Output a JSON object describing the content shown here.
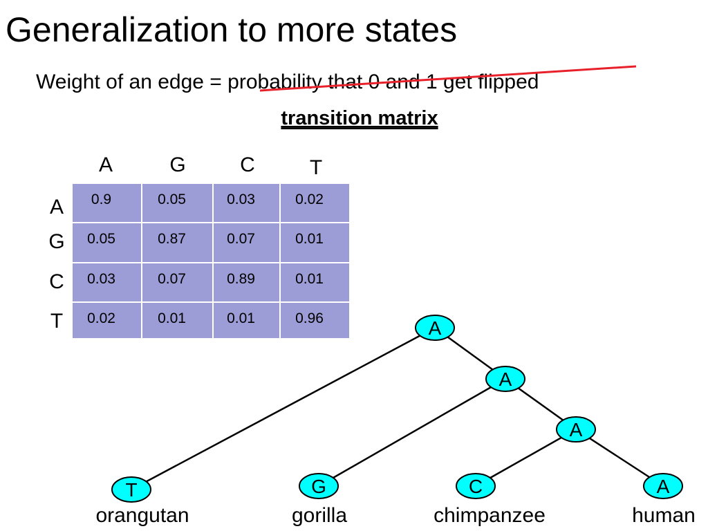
{
  "title": "Generalization to more states",
  "subtitle": "Weight of an edge = probability that 0 and 1 get flipped",
  "heading": "transition matrix",
  "matrix": {
    "columns": [
      "A",
      "G",
      "C",
      "T"
    ],
    "rows": [
      {
        "label": "A",
        "cells": [
          "0.9",
          "0.05",
          "0.03",
          "0.02"
        ]
      },
      {
        "label": "G",
        "cells": [
          "0.05",
          "0.87",
          "0.07",
          "0.01"
        ]
      },
      {
        "label": "C",
        "cells": [
          "0.03",
          "0.07",
          "0.89",
          "0.01"
        ]
      },
      {
        "label": "T",
        "cells": [
          "0.02",
          "0.01",
          "0.01",
          "0.96"
        ]
      }
    ]
  },
  "tree": {
    "nodes": [
      {
        "label": "A"
      },
      {
        "label": "A"
      },
      {
        "label": "A"
      },
      {
        "label": "T",
        "name": "orangutan"
      },
      {
        "label": "G",
        "name": "gorilla"
      },
      {
        "label": "C",
        "name": "chimpanzee"
      },
      {
        "label": "A",
        "name": "human"
      }
    ]
  }
}
